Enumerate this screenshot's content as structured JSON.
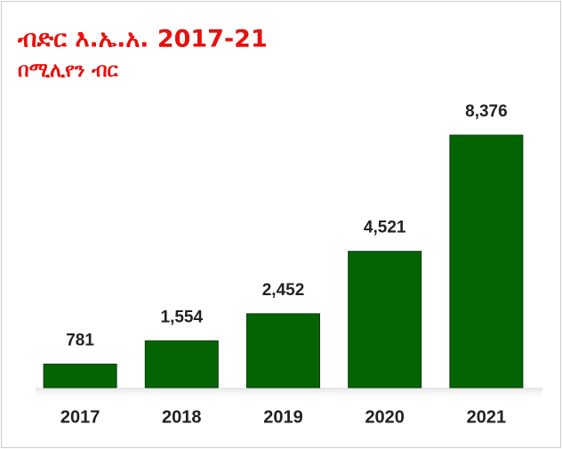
{
  "chart_data": {
    "type": "bar",
    "title": "ብድር እ.ኤ.አ. 2017-21",
    "subtitle": "በሚሊየን ብር",
    "categories": [
      "2017",
      "2018",
      "2019",
      "2020",
      "2021"
    ],
    "values": [
      781,
      1554,
      2452,
      4521,
      8376
    ],
    "value_labels": [
      "781",
      "1,554",
      "2,452",
      "4,521",
      "8,376"
    ],
    "color": "#046404"
  }
}
